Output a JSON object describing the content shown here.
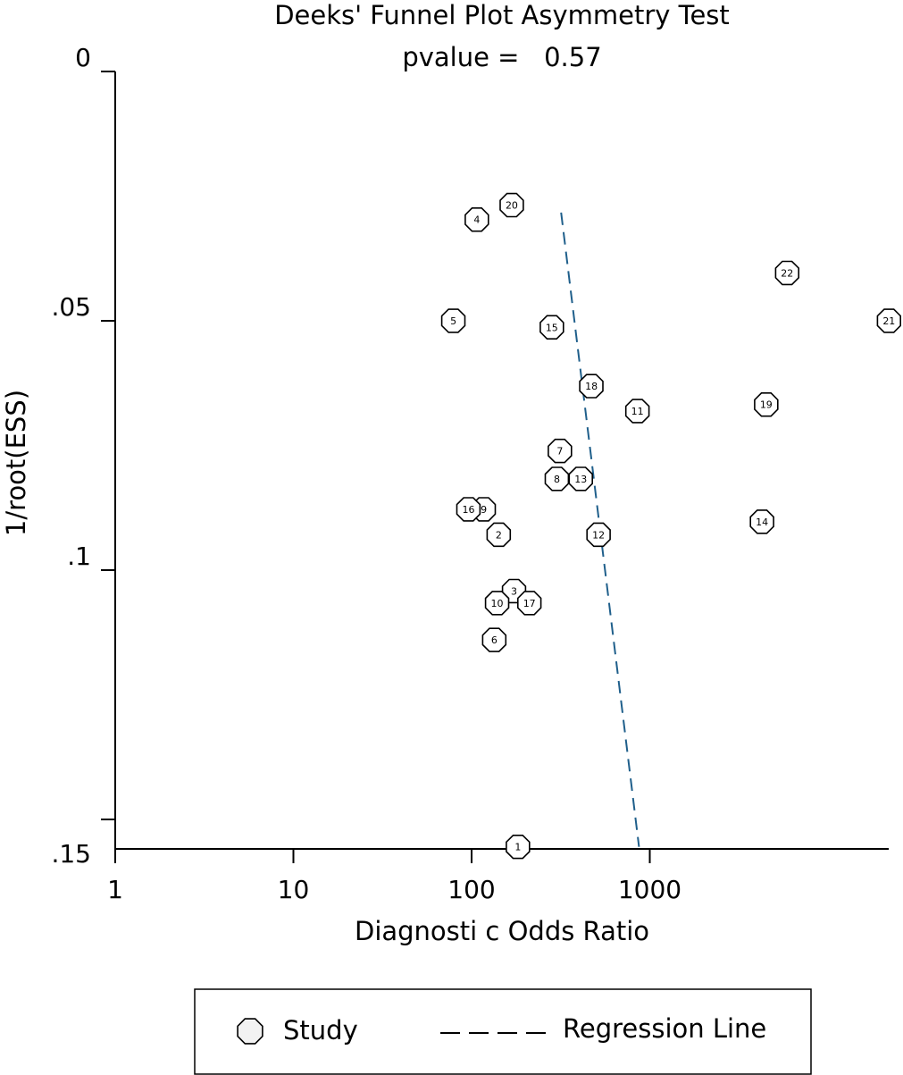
{
  "chart_data": {
    "type": "scatter",
    "title": "Deeks' Funnel Plot Asymmetry Test",
    "subtitle": "pvalue =   0.57",
    "xlabel": "Diagnosti c Odds Ratio",
    "ylabel": "1/root(ESS)",
    "x_scale": "log",
    "xlim": [
      1,
      22000
    ],
    "ylim": [
      0,
      0.1555
    ],
    "y_inverted": true,
    "x_ticks": [
      {
        "value": 1,
        "label": "1"
      },
      {
        "value": 10,
        "label": "10"
      },
      {
        "value": 100,
        "label": "100"
      },
      {
        "value": 1000,
        "label": "1000"
      }
    ],
    "y_ticks": [
      {
        "value": 0,
        "label": "0"
      },
      {
        "value": 0.05,
        "label": ".05"
      },
      {
        "value": 0.1,
        "label": ".1"
      },
      {
        "value": 0.15,
        "label": ".15"
      }
    ],
    "grid": false,
    "legend_position": "bottom",
    "series": [
      {
        "name": "Study",
        "marker": "octagon",
        "points": [
          {
            "label": "1",
            "x": 182,
            "y": 0.1555
          },
          {
            "label": "2",
            "x": 142,
            "y": 0.0929
          },
          {
            "label": "3",
            "x": 173,
            "y": 0.1042
          },
          {
            "label": "4",
            "x": 107,
            "y": 0.0297
          },
          {
            "label": "5",
            "x": 79,
            "y": 0.05
          },
          {
            "label": "6",
            "x": 134,
            "y": 0.114
          },
          {
            "label": "7",
            "x": 313,
            "y": 0.0761
          },
          {
            "label": "8",
            "x": 301,
            "y": 0.0817
          },
          {
            "label": "9",
            "x": 117,
            "y": 0.0878
          },
          {
            "label": "10",
            "x": 139,
            "y": 0.1066
          },
          {
            "label": "11",
            "x": 852,
            "y": 0.0681
          },
          {
            "label": "12",
            "x": 516,
            "y": 0.0929
          },
          {
            "label": "13",
            "x": 410,
            "y": 0.0817
          },
          {
            "label": "14",
            "x": 4265,
            "y": 0.0903
          },
          {
            "label": "15",
            "x": 282,
            "y": 0.0513
          },
          {
            "label": "16",
            "x": 96,
            "y": 0.0878
          },
          {
            "label": "17",
            "x": 211,
            "y": 0.1066
          },
          {
            "label": "18",
            "x": 470,
            "y": 0.0631
          },
          {
            "label": "19",
            "x": 4500,
            "y": 0.0668
          },
          {
            "label": "20",
            "x": 168,
            "y": 0.0268
          },
          {
            "label": "21",
            "x": 22000,
            "y": 0.05
          },
          {
            "label": "22",
            "x": 5900,
            "y": 0.0404
          }
        ]
      },
      {
        "name": "Regression Line",
        "style": "dashed",
        "color": "#1f5f8b",
        "points": [
          {
            "x": 318,
            "y": 0.0283
          },
          {
            "x": 870,
            "y": 0.1555
          }
        ]
      }
    ],
    "legend": [
      {
        "label": "Study",
        "symbol": "octagon"
      },
      {
        "label": "Regression Line",
        "symbol": "dashed-line"
      }
    ]
  }
}
